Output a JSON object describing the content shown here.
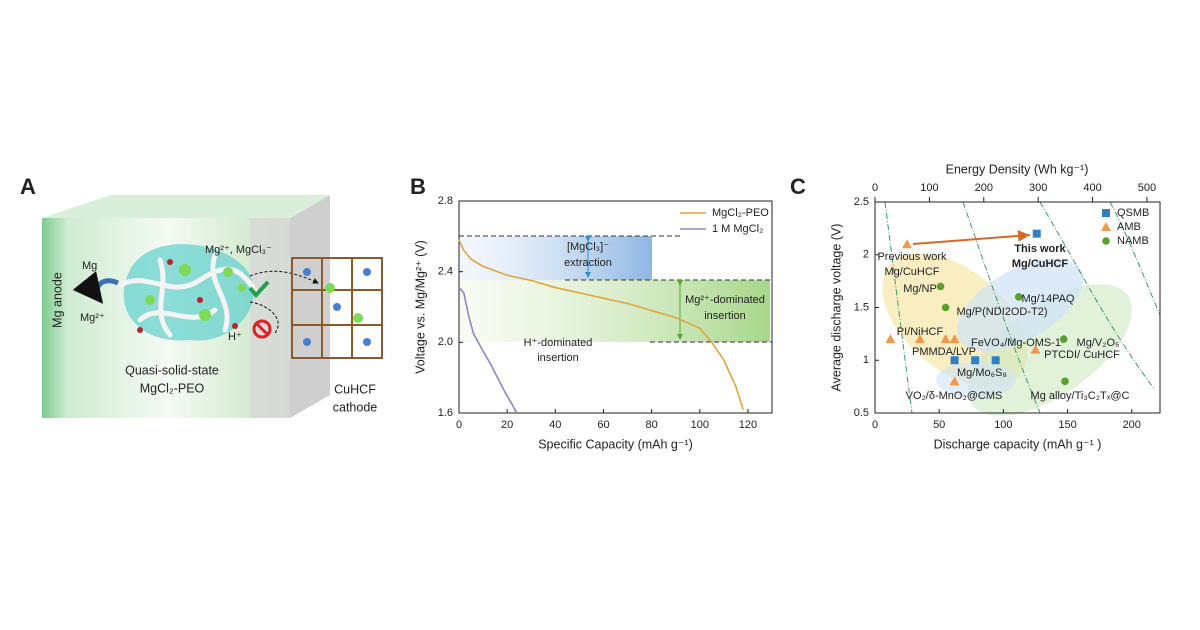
{
  "panel_a": {
    "letter": "A",
    "anode": "Mg anode",
    "mg": "Mg",
    "mg_ion": "Mg²⁺",
    "ions": "Mg²⁺, MgCl₃⁻",
    "proton": "H⁺",
    "electrolyte_1": "Quasi-solid-state",
    "electrolyte_2": "MgCl₂-PEO",
    "cathode_1": "CuHCF",
    "cathode_2": "cathode"
  },
  "chart_data": [
    {
      "type": "line",
      "letter": "B",
      "xlabel": "Specific Capacity (mAh g⁻¹)",
      "ylabel": "Voltage vs. Mg/Mg²⁺ (V)",
      "xlim": [
        0,
        130
      ],
      "xticks": [
        0,
        20,
        40,
        60,
        80,
        100,
        120
      ],
      "ylim": [
        1.6,
        2.8
      ],
      "yticks": [
        1.6,
        {
          "value": 2.0,
          "label": "2.0"
        },
        2.4,
        2.8
      ],
      "annotations": [
        "[MgCl₃]⁻",
        "extraction",
        "Mg²⁺-dominated",
        "insertion",
        "H⁺-dominated",
        "insertion"
      ],
      "series": [
        {
          "name": "MgCl₂-PEO",
          "color": "#e0a53a",
          "x": [
            0,
            2,
            5,
            10,
            20,
            30,
            40,
            50,
            60,
            70,
            80,
            90,
            100,
            105,
            110,
            115,
            118
          ],
          "values": [
            2.58,
            2.52,
            2.47,
            2.43,
            2.38,
            2.35,
            2.31,
            2.28,
            2.25,
            2.22,
            2.18,
            2.14,
            2.08,
            2.0,
            1.9,
            1.75,
            1.62
          ]
        },
        {
          "name": "1 M MgCl₂",
          "color": "#8a86c8",
          "x": [
            0,
            2,
            4,
            6,
            8,
            10,
            13,
            16,
            19,
            22,
            24
          ],
          "values": [
            2.31,
            2.28,
            2.15,
            2.05,
            2.0,
            1.95,
            1.88,
            1.8,
            1.72,
            1.65,
            1.6
          ]
        }
      ]
    },
    {
      "type": "scatter",
      "letter": "C",
      "xlabel": "Discharge capacity (mAh g⁻¹ )",
      "ylabel": "Average discharge voltage (V)",
      "x2label": "Energy Density (Wh kg⁻¹)",
      "xlim": [
        0,
        222
      ],
      "xticks": [
        0,
        50,
        100,
        150,
        200
      ],
      "x2lim": [
        0,
        524
      ],
      "x2ticks": [
        0,
        100,
        200,
        300,
        400,
        500
      ],
      "ylim": [
        0.5,
        2.5
      ],
      "yticks": [
        0.5,
        1.0,
        1.5,
        2.0,
        2.5
      ],
      "annotations": [
        "This work",
        "Mg/CuHCF",
        "Previous work",
        "Mg/CuHCF",
        "Mg/NP",
        "Mg/14PAQ",
        "Mg/P(NDI2OD-T2)",
        "PI/NiHCF",
        "FeVO₄/Mg-OMS-1",
        "Mg/V₂O₅",
        "PMMDA/LVP",
        "PTCDI/ CuHCF",
        "Mg/Mo₆S₈",
        "VO₂/δ-MnO₂@CMS",
        "Mg alloy/Ti₃C₂Tₓ@C"
      ],
      "series": [
        {
          "name": "QSMB",
          "color": "#2f7fc4",
          "marker": "square",
          "x": [
            126,
            62,
            78,
            94
          ],
          "values": [
            2.2,
            1.0,
            1.0,
            1.0
          ]
        },
        {
          "name": "AMB",
          "color": "#ef9a4a",
          "marker": "triangle",
          "x": [
            25,
            12,
            35,
            55,
            62,
            125,
            62
          ],
          "values": [
            2.1,
            1.2,
            1.2,
            1.2,
            1.2,
            1.1,
            0.8
          ]
        },
        {
          "name": "NAMB",
          "color": "#5aa02c",
          "marker": "circle",
          "x": [
            51,
            55,
            112,
            147,
            148
          ],
          "values": [
            1.7,
            1.5,
            1.6,
            1.2,
            0.8
          ]
        }
      ]
    }
  ]
}
